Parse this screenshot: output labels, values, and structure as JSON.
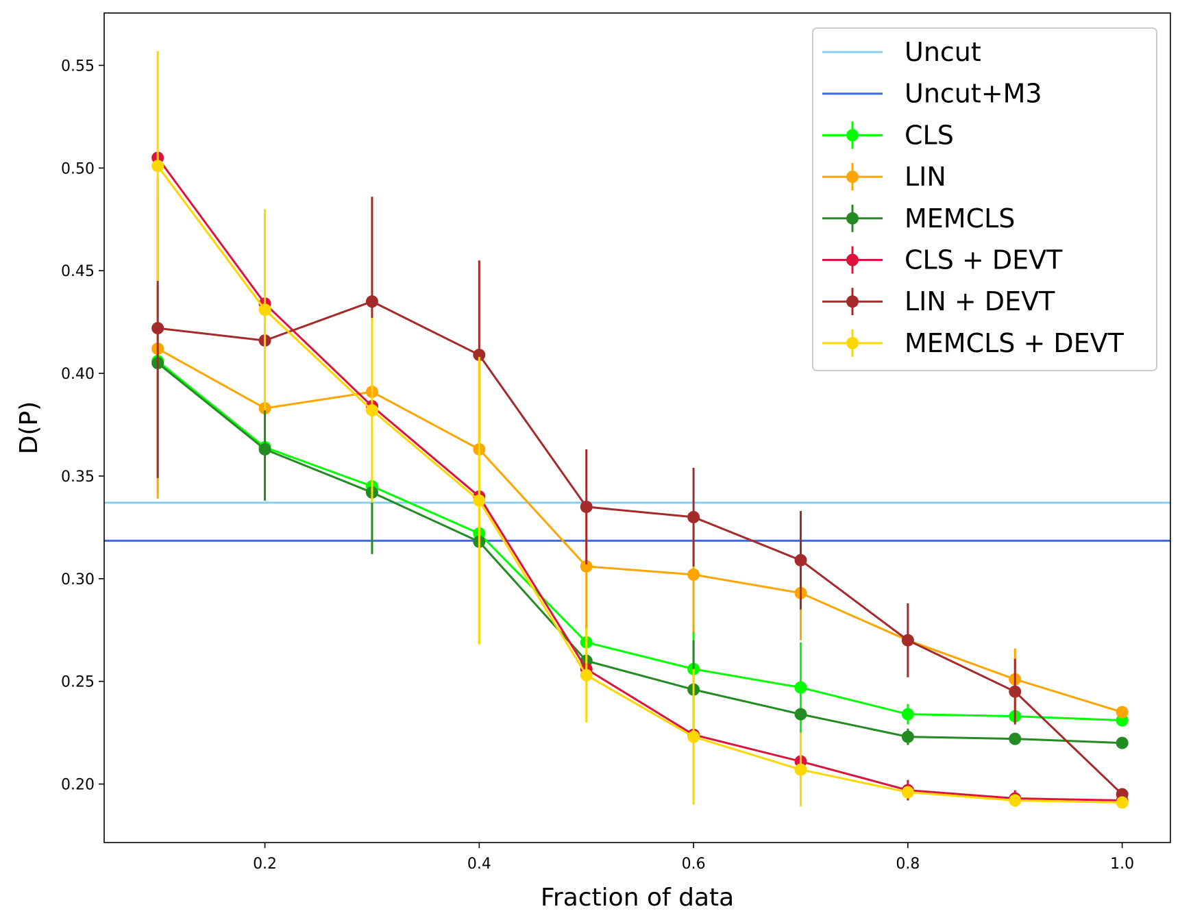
{
  "chart_data": {
    "type": "line",
    "title": "",
    "xlabel": "Fraction of data",
    "ylabel": "D(P)",
    "xlim": [
      0.05,
      1.045
    ],
    "ylim": [
      0.1715,
      0.5755
    ],
    "x_ticks": [
      0.2,
      0.4,
      0.6,
      0.8,
      1.0
    ],
    "x_tick_labels": [
      "0.2",
      "0.4",
      "0.6",
      "0.8",
      "1.0"
    ],
    "y_ticks": [
      0.2,
      0.25,
      0.3,
      0.35,
      0.4,
      0.45,
      0.5,
      0.55
    ],
    "y_tick_labels": [
      "0.20",
      "0.25",
      "0.30",
      "0.35",
      "0.40",
      "0.45",
      "0.50",
      "0.55"
    ],
    "grid": false,
    "legend_position": "top-right",
    "x": [
      0.1,
      0.2,
      0.3,
      0.4,
      0.5,
      0.6,
      0.7,
      0.8,
      0.9,
      1.0
    ],
    "hlines": [
      {
        "name": "Uncut",
        "value": 0.337,
        "color": "#87ceeb"
      },
      {
        "name": "Uncut+M3",
        "value": 0.3185,
        "color": "#4169e1"
      }
    ],
    "series": [
      {
        "name": "CLS",
        "color": "#00ff00",
        "values": [
          0.406,
          0.364,
          0.345,
          0.322,
          0.269,
          0.256,
          0.247,
          0.234,
          0.233,
          0.231
        ],
        "errors": [
          0.0,
          0.0,
          0.0,
          0.0,
          0.008,
          0.022,
          0.022,
          0.005,
          0.003,
          0.003
        ]
      },
      {
        "name": "LIN",
        "color": "#ffa500",
        "values": [
          0.412,
          0.383,
          0.391,
          0.363,
          0.306,
          0.302,
          0.293,
          0.27,
          0.251,
          0.235
        ],
        "errors": [
          0.073,
          0.0,
          0.0,
          0.0,
          0.03,
          0.028,
          0.023,
          0.0,
          0.015,
          0.0
        ]
      },
      {
        "name": "MEMCLS",
        "color": "#228b22",
        "values": [
          0.405,
          0.363,
          0.342,
          0.318,
          0.26,
          0.246,
          0.234,
          0.223,
          0.222,
          0.22
        ],
        "errors": [
          0.0,
          0.025,
          0.03,
          0.0,
          0.0,
          0.024,
          0.0,
          0.004,
          0.002,
          0.002
        ]
      },
      {
        "name": "CLS + DEVT",
        "color": "#dc143c",
        "values": [
          0.505,
          0.434,
          0.384,
          0.34,
          0.256,
          0.224,
          0.211,
          0.197,
          0.193,
          0.192
        ],
        "errors": [
          0.0,
          0.0,
          0.0,
          0.0,
          0.0,
          0.0,
          0.014,
          0.005,
          0.004,
          0.0
        ]
      },
      {
        "name": "LIN + DEVT",
        "color": "#a52a2a",
        "values": [
          0.422,
          0.416,
          0.435,
          0.409,
          0.335,
          0.33,
          0.309,
          0.27,
          0.245,
          0.195
        ],
        "errors": [
          0.073,
          0.0,
          0.051,
          0.046,
          0.028,
          0.024,
          0.024,
          0.018,
          0.016,
          0.0
        ]
      },
      {
        "name": "MEMCLS + DEVT",
        "color": "#ffd700",
        "values": [
          0.501,
          0.431,
          0.382,
          0.338,
          0.253,
          0.223,
          0.207,
          0.196,
          0.192,
          0.191
        ],
        "errors": [
          0.056,
          0.049,
          0.045,
          0.07,
          0.023,
          0.033,
          0.018,
          0.0,
          0.0,
          0.0
        ]
      }
    ]
  }
}
